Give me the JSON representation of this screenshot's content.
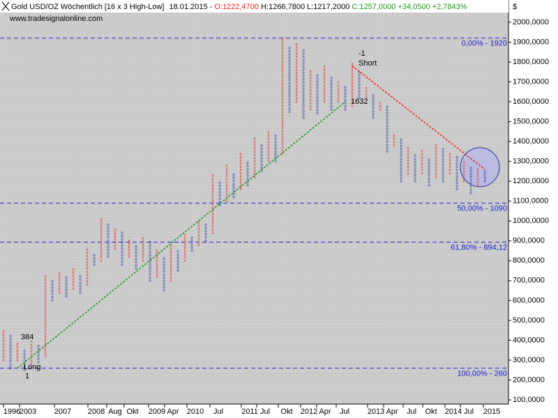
{
  "header": {
    "title": "Gold USD/OZ Wöchentlich [16 x 3 High-Low]",
    "date": "18.01.2015 -",
    "open": "O:1222,4700",
    "high": "H:1266,7800",
    "low": "L:1217,2000",
    "close": "C:1257,0000",
    "change": "+34,0500",
    "change_pct": "+2,7843%"
  },
  "watermark": "www.tradesignalonline.com",
  "chart_data": {
    "type": "point-and-figure",
    "box_size": 16,
    "ylim": [
      79,
      2049
    ],
    "y_unit": "$",
    "yticks": [
      {
        "value": 100,
        "label": "100,0000"
      },
      {
        "value": 200,
        "label": "200,0000"
      },
      {
        "value": 300,
        "label": "300,0000"
      },
      {
        "value": 400,
        "label": "400,0000"
      },
      {
        "value": 500,
        "label": "500,0000"
      },
      {
        "value": 600,
        "label": "600,0000"
      },
      {
        "value": 700,
        "label": "700,0000"
      },
      {
        "value": 800,
        "label": "800,0000"
      },
      {
        "value": 900,
        "label": "900,0000"
      },
      {
        "value": 1000,
        "label": "1000,0000"
      },
      {
        "value": 1100,
        "label": "1100,0000"
      },
      {
        "value": 1200,
        "label": "1200,0000"
      },
      {
        "value": 1300,
        "label": "1300,0000"
      },
      {
        "value": 1400,
        "label": "1400,0000"
      },
      {
        "value": 1500,
        "label": "1500,0000"
      },
      {
        "value": 1600,
        "label": "1600,0000"
      },
      {
        "value": 1700,
        "label": "1700,0000"
      },
      {
        "value": 1800,
        "label": "1800,0000"
      },
      {
        "value": 1900,
        "label": "1900,0000"
      },
      {
        "value": 2000,
        "label": "2000,0000"
      }
    ],
    "x_labels": [
      "1996",
      "2003",
      "2007",
      "2008",
      "Aug",
      "Okt",
      "2009",
      "Apr",
      "2010",
      "Jul",
      "2011",
      "Jul",
      "Okt",
      "2012",
      "Apr",
      "Jul",
      "2013",
      "Apr",
      "Jul",
      "Okt",
      "2014",
      "Jul",
      "2015"
    ],
    "colors": {
      "X": "#e8241c",
      "O": "#1d2d9a"
    },
    "columns": [
      {
        "kind": "X",
        "low": 300,
        "high": 450
      },
      {
        "kind": "O",
        "low": 260,
        "high": 420
      },
      {
        "kind": "X",
        "low": 300,
        "high": 380
      },
      {
        "kind": "O",
        "low": 250,
        "high": 350
      },
      {
        "kind": "X",
        "low": 280,
        "high": 400
      },
      {
        "kind": "O",
        "low": 290,
        "high": 380
      },
      {
        "kind": "X",
        "low": 320,
        "high": 720
      },
      {
        "kind": "O",
        "low": 600,
        "high": 700
      },
      {
        "kind": "X",
        "low": 640,
        "high": 740
      },
      {
        "kind": "O",
        "low": 620,
        "high": 720
      },
      {
        "kind": "X",
        "low": 660,
        "high": 760
      },
      {
        "kind": "O",
        "low": 640,
        "high": 720
      },
      {
        "kind": "X",
        "low": 680,
        "high": 860
      },
      {
        "kind": "O",
        "low": 780,
        "high": 840
      },
      {
        "kind": "X",
        "low": 800,
        "high": 1020
      },
      {
        "kind": "O",
        "low": 820,
        "high": 980
      },
      {
        "kind": "X",
        "low": 860,
        "high": 960
      },
      {
        "kind": "O",
        "low": 780,
        "high": 940
      },
      {
        "kind": "X",
        "low": 820,
        "high": 900
      },
      {
        "kind": "O",
        "low": 760,
        "high": 880
      },
      {
        "kind": "X",
        "low": 800,
        "high": 920
      },
      {
        "kind": "O",
        "low": 700,
        "high": 900
      },
      {
        "kind": "X",
        "low": 720,
        "high": 860
      },
      {
        "kind": "O",
        "low": 650,
        "high": 820
      },
      {
        "kind": "X",
        "low": 700,
        "high": 880
      },
      {
        "kind": "O",
        "low": 750,
        "high": 860
      },
      {
        "kind": "X",
        "low": 800,
        "high": 940
      },
      {
        "kind": "O",
        "low": 850,
        "high": 920
      },
      {
        "kind": "X",
        "low": 880,
        "high": 1000
      },
      {
        "kind": "O",
        "low": 900,
        "high": 980
      },
      {
        "kind": "X",
        "low": 940,
        "high": 1240
      },
      {
        "kind": "O",
        "low": 1080,
        "high": 1200
      },
      {
        "kind": "X",
        "low": 1100,
        "high": 1280
      },
      {
        "kind": "O",
        "low": 1120,
        "high": 1240
      },
      {
        "kind": "X",
        "low": 1160,
        "high": 1340
      },
      {
        "kind": "O",
        "low": 1180,
        "high": 1300
      },
      {
        "kind": "X",
        "low": 1220,
        "high": 1420
      },
      {
        "kind": "O",
        "low": 1250,
        "high": 1380
      },
      {
        "kind": "X",
        "low": 1300,
        "high": 1450
      },
      {
        "kind": "O",
        "low": 1300,
        "high": 1440
      },
      {
        "kind": "X",
        "low": 1340,
        "high": 1920
      },
      {
        "kind": "O",
        "low": 1550,
        "high": 1880
      },
      {
        "kind": "X",
        "low": 1600,
        "high": 1900
      },
      {
        "kind": "O",
        "low": 1520,
        "high": 1860
      },
      {
        "kind": "X",
        "low": 1560,
        "high": 1760
      },
      {
        "kind": "O",
        "low": 1540,
        "high": 1740
      },
      {
        "kind": "X",
        "low": 1600,
        "high": 1780
      },
      {
        "kind": "O",
        "low": 1560,
        "high": 1720
      },
      {
        "kind": "X",
        "low": 1600,
        "high": 1700
      },
      {
        "kind": "O",
        "low": 1560,
        "high": 1680
      },
      {
        "kind": "X",
        "low": 1580,
        "high": 1800
      },
      {
        "kind": "O",
        "low": 1620,
        "high": 1760
      },
      {
        "kind": "X",
        "low": 1620,
        "high": 1680
      },
      {
        "kind": "O",
        "low": 1520,
        "high": 1640
      },
      {
        "kind": "X",
        "low": 1560,
        "high": 1600
      },
      {
        "kind": "O",
        "low": 1350,
        "high": 1580
      },
      {
        "kind": "X",
        "low": 1380,
        "high": 1440
      },
      {
        "kind": "O",
        "low": 1200,
        "high": 1420
      },
      {
        "kind": "X",
        "low": 1240,
        "high": 1380
      },
      {
        "kind": "O",
        "low": 1200,
        "high": 1340
      },
      {
        "kind": "X",
        "low": 1240,
        "high": 1360
      },
      {
        "kind": "O",
        "low": 1180,
        "high": 1320
      },
      {
        "kind": "X",
        "low": 1220,
        "high": 1380
      },
      {
        "kind": "O",
        "low": 1200,
        "high": 1360
      },
      {
        "kind": "X",
        "low": 1240,
        "high": 1340
      },
      {
        "kind": "O",
        "low": 1160,
        "high": 1320
      },
      {
        "kind": "X",
        "low": 1200,
        "high": 1300
      },
      {
        "kind": "O",
        "low": 1140,
        "high": 1280
      },
      {
        "kind": "X",
        "low": 1180,
        "high": 1260
      },
      {
        "kind": "O",
        "low": 1200,
        "high": 1250
      }
    ],
    "levels": [
      {
        "value": 1920,
        "label": "0,00% - 1920"
      },
      {
        "value": 1090,
        "label": "50,00% - 1090"
      },
      {
        "value": 894.12,
        "label": "61,80% - 894,12"
      },
      {
        "value": 260,
        "label": "100,00% - 260"
      }
    ],
    "level_color": "#2020d0",
    "trendlines": [
      {
        "color": "#1a9a1a",
        "from_column": 2,
        "from": 260,
        "to_column": 49,
        "to": 1600
      },
      {
        "color": "#e8241c",
        "from_column": 50,
        "from": 1780,
        "to_column": 69,
        "to": 1260
      }
    ],
    "annotations": [
      "384",
      "1",
      "Long",
      "-1",
      "Short",
      "1632"
    ]
  }
}
